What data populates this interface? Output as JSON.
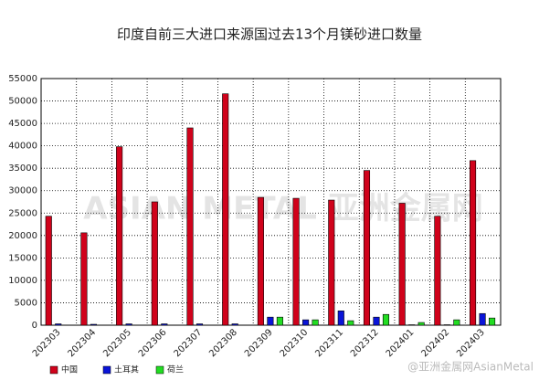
{
  "chart_data": {
    "type": "bar",
    "title": "印度自前三大进口来源国过去13个月镁砂进口数量",
    "categories": [
      "202303",
      "202304",
      "202305",
      "202306",
      "202307",
      "202308",
      "202309",
      "202310",
      "202311",
      "202312",
      "202401",
      "202402",
      "202403"
    ],
    "series": [
      {
        "name": "中国",
        "color": "#d0021b",
        "values": [
          24300,
          20600,
          39800,
          27500,
          44000,
          51600,
          28500,
          28300,
          27900,
          34500,
          27200,
          24300,
          36700
        ]
      },
      {
        "name": "土耳其",
        "color": "#0a14d8",
        "values": [
          300,
          200,
          300,
          300,
          300,
          300,
          1800,
          1200,
          3200,
          1800,
          100,
          100,
          2600
        ]
      },
      {
        "name": "荷兰",
        "color": "#22dd22",
        "values": [
          0,
          0,
          0,
          0,
          0,
          0,
          1800,
          1200,
          1000,
          2400,
          600,
          1200,
          1600
        ]
      }
    ],
    "ylim": [
      0,
      55000
    ],
    "yticks": [
      0,
      5000,
      10000,
      15000,
      20000,
      25000,
      30000,
      35000,
      40000,
      45000,
      50000,
      55000
    ],
    "grid": true,
    "legend": "bottom-left",
    "watermark": "ASIAN METAL 亚洲金属网",
    "source": "@亚洲金属网AsianMetal"
  }
}
